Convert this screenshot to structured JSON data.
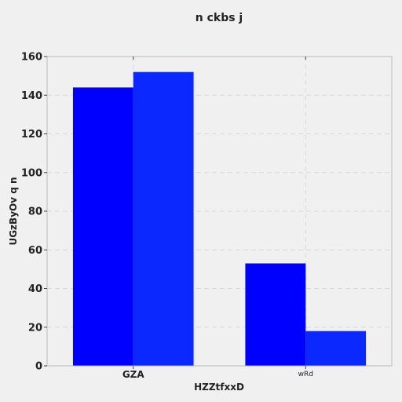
{
  "chart_data": {
    "type": "bar",
    "title": "n ckbs j",
    "xlabel": "HZZtfxxD",
    "ylabel": "UGzByOv q n",
    "categories": [
      "GZA",
      "wRd"
    ],
    "category_label_emphasis": [
      "bold",
      "normal"
    ],
    "series": [
      {
        "values": [
          144,
          53
        ],
        "color": "#0000ff"
      },
      {
        "values": [
          152,
          18
        ],
        "color": "#0a28ff"
      }
    ],
    "ylim": [
      0,
      160
    ],
    "yticks": [
      0,
      20,
      40,
      60,
      80,
      100,
      120,
      140,
      160
    ],
    "grid": true,
    "legend": "none"
  },
  "colors": {
    "background": "#f0f0f0",
    "grid": "#d8d8d8",
    "axis": "#bbbbbb"
  }
}
